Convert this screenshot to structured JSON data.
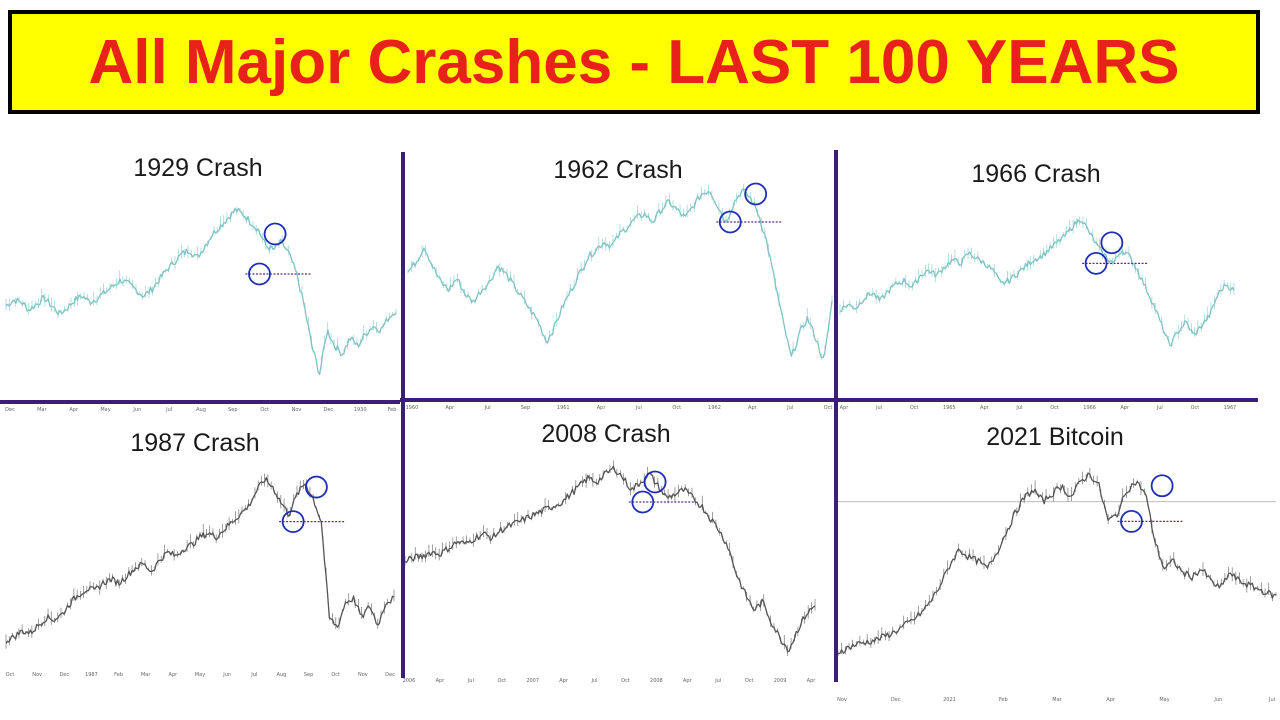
{
  "banner": {
    "title": "All Major Crashes - LAST 100 YEARS",
    "background": "#ffff00",
    "title_color": "#e8211b"
  },
  "colors": {
    "divider": "#3b1d7a",
    "marker_circle": "#1f2fb5",
    "marker_line": "#5a2f8a",
    "teal_series": "#7ec4c4",
    "gray_series": "#555555"
  },
  "chart_data": [
    {
      "type": "line",
      "title": "1929 Crash",
      "x_ticks": [
        "Dec",
        "Mar",
        "Apr",
        "May",
        "Jun",
        "Jul",
        "Aug",
        "Sep",
        "Oct",
        "Nov",
        "Dec",
        "1930",
        "Feb"
      ],
      "y": [
        0.42,
        0.45,
        0.44,
        0.4,
        0.43,
        0.46,
        0.42,
        0.38,
        0.41,
        0.45,
        0.47,
        0.44,
        0.46,
        0.49,
        0.52,
        0.55,
        0.53,
        0.5,
        0.47,
        0.5,
        0.55,
        0.6,
        0.64,
        0.68,
        0.7,
        0.66,
        0.72,
        0.78,
        0.82,
        0.86,
        0.9,
        0.88,
        0.84,
        0.8,
        0.72,
        0.7,
        0.74,
        0.68,
        0.58,
        0.42,
        0.22,
        0.08,
        0.3,
        0.22,
        0.18,
        0.26,
        0.22,
        0.28,
        0.32,
        0.3,
        0.36,
        0.4
      ],
      "markers": [
        {
          "x": 0.69,
          "y": 0.78,
          "role": "high"
        },
        {
          "x": 0.65,
          "y": 0.58,
          "role": "support"
        }
      ],
      "support_level": 0.58
    },
    {
      "type": "line",
      "title": "1962 Crash",
      "x_ticks": [
        "1960",
        "Apr",
        "Jul",
        "Sep",
        "1961",
        "Apr",
        "Jul",
        "Oct",
        "1962",
        "Apr",
        "Jul",
        "Oct"
      ],
      "y": [
        0.55,
        0.6,
        0.68,
        0.58,
        0.5,
        0.46,
        0.52,
        0.44,
        0.4,
        0.46,
        0.5,
        0.58,
        0.54,
        0.48,
        0.42,
        0.36,
        0.3,
        0.2,
        0.28,
        0.38,
        0.46,
        0.54,
        0.62,
        0.66,
        0.7,
        0.68,
        0.74,
        0.78,
        0.82,
        0.84,
        0.8,
        0.86,
        0.9,
        0.86,
        0.82,
        0.88,
        0.94,
        0.96,
        0.88,
        0.8,
        0.9,
        0.96,
        0.92,
        0.84,
        0.7,
        0.5,
        0.3,
        0.12,
        0.24,
        0.32,
        0.22,
        0.1,
        0.4
      ],
      "markers": [
        {
          "x": 0.82,
          "y": 0.94,
          "role": "high"
        },
        {
          "x": 0.76,
          "y": 0.8,
          "role": "support"
        }
      ],
      "support_level": 0.8
    },
    {
      "type": "line",
      "title": "1966 Crash",
      "x_ticks": [
        "Apr",
        "Jul",
        "Oct",
        "1965",
        "Apr",
        "Jul",
        "Oct",
        "1966",
        "Apr",
        "Jul",
        "Oct",
        "1967"
      ],
      "y": [
        0.35,
        0.38,
        0.36,
        0.42,
        0.45,
        0.4,
        0.46,
        0.5,
        0.52,
        0.48,
        0.55,
        0.58,
        0.55,
        0.6,
        0.64,
        0.62,
        0.68,
        0.65,
        0.62,
        0.58,
        0.5,
        0.52,
        0.56,
        0.6,
        0.64,
        0.66,
        0.7,
        0.74,
        0.78,
        0.84,
        0.88,
        0.8,
        0.72,
        0.66,
        0.62,
        0.7,
        0.66,
        0.58,
        0.48,
        0.38,
        0.26,
        0.14,
        0.22,
        0.28,
        0.2,
        0.26,
        0.32,
        0.44,
        0.5,
        0.46
      ],
      "markers": [
        {
          "x": 0.69,
          "y": 0.74,
          "role": "high"
        },
        {
          "x": 0.65,
          "y": 0.62,
          "role": "support"
        }
      ],
      "support_level": 0.62
    },
    {
      "type": "line",
      "title": "1987 Crash",
      "x_ticks": [
        "Oct",
        "Nov",
        "Dec",
        "1987",
        "Feb",
        "Mar",
        "Apr",
        "May",
        "Jun",
        "Jul",
        "Aug",
        "Sep",
        "Oct",
        "Nov",
        "Dec"
      ],
      "y": [
        0.08,
        0.1,
        0.13,
        0.12,
        0.16,
        0.2,
        0.19,
        0.22,
        0.28,
        0.32,
        0.35,
        0.34,
        0.38,
        0.4,
        0.38,
        0.42,
        0.46,
        0.48,
        0.44,
        0.5,
        0.54,
        0.52,
        0.56,
        0.58,
        0.62,
        0.64,
        0.62,
        0.66,
        0.7,
        0.74,
        0.78,
        0.86,
        0.92,
        0.88,
        0.8,
        0.74,
        0.84,
        0.9,
        0.82,
        0.7,
        0.2,
        0.15,
        0.28,
        0.3,
        0.2,
        0.26,
        0.16,
        0.28,
        0.3
      ],
      "markers": [
        {
          "x": 0.8,
          "y": 0.88,
          "role": "high"
        },
        {
          "x": 0.74,
          "y": 0.7,
          "role": "support"
        }
      ],
      "support_level": 0.7
    },
    {
      "type": "line",
      "title": "2008 Crash",
      "x_ticks": [
        "2006",
        "Apr",
        "Jul",
        "Oct",
        "2007",
        "Apr",
        "Jul",
        "Oct",
        "2008",
        "Apr",
        "Jul",
        "Oct",
        "2009",
        "Apr"
      ],
      "y": [
        0.48,
        0.5,
        0.51,
        0.53,
        0.52,
        0.55,
        0.58,
        0.57,
        0.6,
        0.62,
        0.6,
        0.64,
        0.66,
        0.68,
        0.7,
        0.72,
        0.74,
        0.76,
        0.78,
        0.82,
        0.86,
        0.9,
        0.88,
        0.92,
        0.95,
        0.9,
        0.84,
        0.88,
        0.92,
        0.86,
        0.8,
        0.82,
        0.84,
        0.8,
        0.76,
        0.7,
        0.64,
        0.56,
        0.42,
        0.32,
        0.24,
        0.28,
        0.18,
        0.1,
        0.04,
        0.14,
        0.22,
        0.26
      ],
      "markers": [
        {
          "x": 0.61,
          "y": 0.88,
          "role": "high"
        },
        {
          "x": 0.58,
          "y": 0.78,
          "role": "support"
        }
      ],
      "support_level": 0.78
    },
    {
      "type": "line",
      "title": "2021 Bitcoin",
      "x_ticks": [
        "Nov",
        "Dec",
        "2021",
        "Feb",
        "Mar",
        "Apr",
        "May",
        "Jun",
        "Jul"
      ],
      "y": [
        0.04,
        0.06,
        0.08,
        0.09,
        0.1,
        0.12,
        0.14,
        0.17,
        0.2,
        0.24,
        0.3,
        0.38,
        0.48,
        0.56,
        0.52,
        0.5,
        0.46,
        0.54,
        0.64,
        0.74,
        0.82,
        0.86,
        0.8,
        0.84,
        0.88,
        0.82,
        0.9,
        0.94,
        0.88,
        0.7,
        0.74,
        0.86,
        0.9,
        0.84,
        0.6,
        0.46,
        0.5,
        0.44,
        0.42,
        0.46,
        0.4,
        0.36,
        0.44,
        0.4,
        0.38,
        0.36,
        0.34,
        0.32
      ],
      "markers": [
        {
          "x": 0.74,
          "y": 0.88,
          "role": "high"
        },
        {
          "x": 0.67,
          "y": 0.7,
          "role": "support"
        }
      ],
      "support_level": 0.7,
      "reference_level": 0.8
    }
  ]
}
